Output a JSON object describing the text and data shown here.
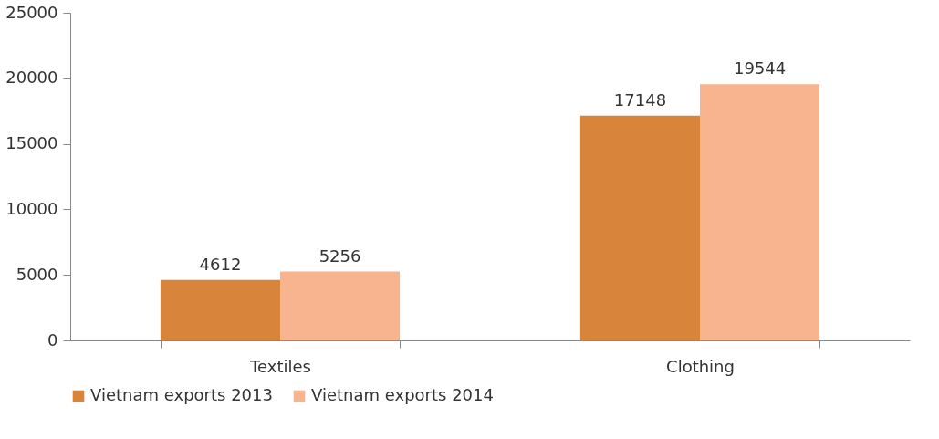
{
  "chart_data": {
    "type": "bar",
    "categories": [
      "Textiles",
      "Clothing"
    ],
    "series": [
      {
        "name": "Vietnam exports 2013",
        "color": "#d9843b",
        "values": [
          4612,
          17148
        ]
      },
      {
        "name": "Vietnam exports 2014",
        "color": "#f8b48f",
        "values": [
          5256,
          19544
        ]
      }
    ],
    "ylim": [
      0,
      25000
    ],
    "yticks": [
      0,
      5000,
      10000,
      15000,
      20000,
      25000
    ],
    "grid": false,
    "legend": "bottom",
    "data_labels": true
  }
}
